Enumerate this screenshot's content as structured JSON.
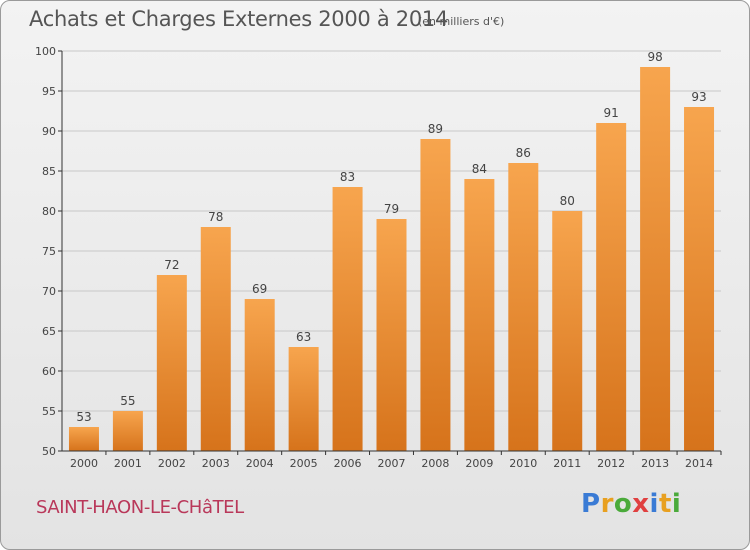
{
  "header": {
    "title": "Achats et Charges Externes 2000 à 2014",
    "units": "(en milliers d'€)"
  },
  "footer": {
    "commune": "SAINT-HAON-LE-CHâTEL",
    "logo_text": "Proxiti",
    "logo_colors": [
      "#3a7bd5",
      "#e8a020",
      "#4aaa3a",
      "#e04040",
      "#3a7bd5",
      "#e8a020",
      "#4aaa3a"
    ]
  },
  "colors": {
    "bar_top": "#f7a54e",
    "bar_bottom": "#d6731b",
    "grid": "#c8c8c8",
    "axis": "#333333"
  },
  "chart_data": {
    "type": "bar",
    "categories": [
      "2000",
      "2001",
      "2002",
      "2003",
      "2004",
      "2005",
      "2006",
      "2007",
      "2008",
      "2009",
      "2010",
      "2011",
      "2012",
      "2013",
      "2014"
    ],
    "values": [
      53,
      55,
      72,
      78,
      69,
      63,
      83,
      79,
      89,
      84,
      86,
      80,
      91,
      98,
      93
    ],
    "ylim": [
      50,
      100
    ],
    "yticks": [
      50,
      55,
      60,
      65,
      70,
      75,
      80,
      85,
      90,
      95,
      100
    ],
    "grid": true,
    "xlabel": "",
    "ylabel": ""
  }
}
